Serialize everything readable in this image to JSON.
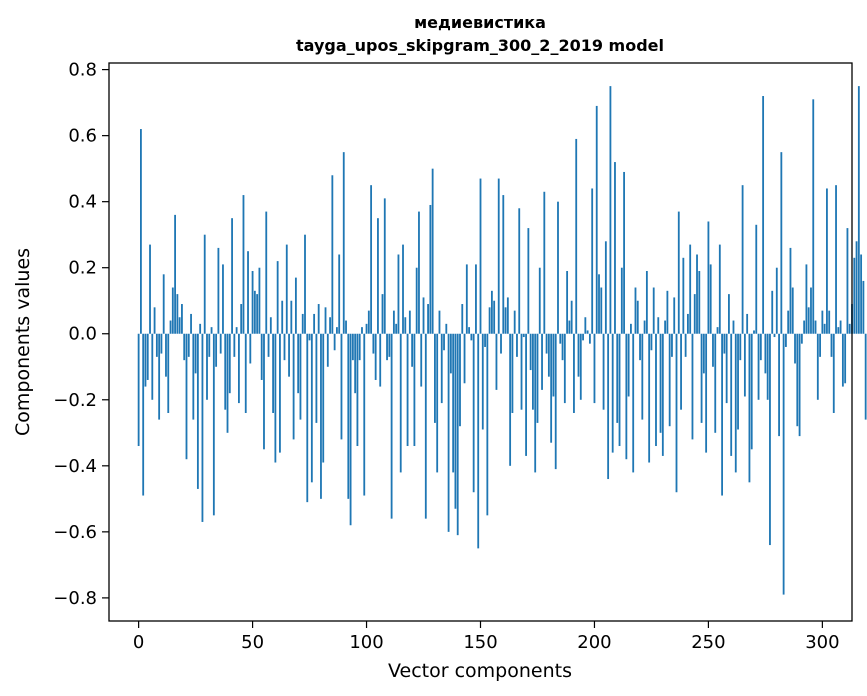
{
  "chart_data": {
    "type": "bar",
    "title": "медиевистика",
    "subtitle": "tayga_upos_skipgram_300_2_2019 model",
    "xlabel": "Vector components",
    "ylabel": "Components values",
    "xlim": [
      -13,
      313
    ],
    "ylim": [
      -0.87,
      0.82
    ],
    "xticks": [
      0,
      50,
      100,
      150,
      200,
      250,
      300
    ],
    "xtick_labels": [
      "0",
      "50",
      "100",
      "150",
      "200",
      "250",
      "300"
    ],
    "yticks": [
      -0.8,
      -0.6,
      -0.4,
      -0.2,
      0.0,
      0.2,
      0.4,
      0.6,
      0.8
    ],
    "ytick_labels": [
      "−0.8",
      "−0.6",
      "−0.4",
      "−0.2",
      "0.0",
      "0.2",
      "0.4",
      "0.6",
      "0.8"
    ],
    "bar_color": "#1f77b4",
    "grid": false,
    "legend": "none",
    "values": [
      -0.34,
      0.62,
      -0.49,
      -0.16,
      -0.14,
      0.27,
      -0.2,
      0.08,
      -0.07,
      -0.26,
      -0.06,
      0.18,
      -0.13,
      -0.24,
      0.04,
      0.14,
      0.36,
      0.12,
      0.05,
      0.09,
      -0.08,
      -0.38,
      -0.07,
      0.06,
      -0.26,
      -0.12,
      -0.47,
      0.03,
      -0.57,
      0.3,
      -0.2,
      -0.07,
      0.02,
      -0.55,
      -0.1,
      0.26,
      -0.06,
      0.21,
      -0.23,
      -0.3,
      -0.18,
      0.35,
      -0.07,
      0.02,
      -0.21,
      0.09,
      0.42,
      -0.24,
      0.25,
      -0.09,
      0.19,
      0.13,
      0.12,
      0.2,
      -0.14,
      -0.35,
      0.37,
      -0.07,
      0.05,
      -0.24,
      -0.39,
      0.22,
      -0.36,
      0.1,
      -0.08,
      0.27,
      -0.13,
      0.1,
      -0.32,
      0.17,
      -0.18,
      -0.26,
      0.06,
      0.3,
      -0.51,
      -0.02,
      -0.45,
      0.06,
      -0.27,
      0.09,
      -0.5,
      -0.39,
      0.08,
      -0.1,
      0.05,
      0.48,
      -0.05,
      0.02,
      0.24,
      -0.32,
      0.55,
      0.04,
      -0.5,
      -0.58,
      -0.08,
      -0.18,
      -0.34,
      -0.08,
      0.02,
      -0.49,
      0.03,
      0.07,
      0.45,
      -0.06,
      -0.14,
      0.35,
      -0.16,
      0.12,
      0.41,
      -0.08,
      -0.07,
      -0.56,
      0.07,
      0.03,
      0.24,
      -0.42,
      0.27,
      0.05,
      -0.34,
      0.07,
      -0.1,
      -0.34,
      0.2,
      0.37,
      -0.16,
      0.11,
      -0.56,
      0.09,
      0.39,
      0.5,
      -0.27,
      -0.42,
      0.07,
      -0.21,
      -0.05,
      0.03,
      -0.6,
      -0.12,
      -0.42,
      -0.53,
      -0.61,
      -0.28,
      0.09,
      -0.15,
      0.21,
      0.02,
      -0.02,
      -0.48,
      0.21,
      -0.65,
      0.47,
      -0.29,
      -0.04,
      -0.55,
      0.08,
      0.13,
      0.1,
      -0.17,
      0.47,
      -0.06,
      0.42,
      0.08,
      0.11,
      -0.4,
      -0.24,
      0.07,
      -0.07,
      0.38,
      -0.23,
      -0.01,
      -0.37,
      0.32,
      -0.11,
      -0.23,
      -0.42,
      -0.27,
      0.2,
      -0.17,
      0.43,
      -0.06,
      -0.13,
      -0.33,
      -0.19,
      -0.41,
      0.4,
      -0.03,
      -0.08,
      -0.21,
      0.19,
      0.04,
      0.1,
      -0.24,
      0.59,
      -0.13,
      -0.2,
      -0.02,
      0.05,
      0.01,
      -0.03,
      0.44,
      -0.21,
      0.69,
      0.18,
      0.14,
      -0.23,
      0.28,
      -0.44,
      0.75,
      -0.36,
      0.52,
      -0.27,
      -0.34,
      0.2,
      0.49,
      -0.38,
      -0.19,
      0.03,
      -0.42,
      0.14,
      0.1,
      -0.08,
      -0.26,
      0.04,
      0.19,
      -0.39,
      -0.05,
      0.14,
      -0.34,
      0.05,
      -0.3,
      -0.37,
      0.04,
      0.13,
      -0.28,
      -0.07,
      0.11,
      -0.48,
      0.37,
      -0.23,
      0.23,
      -0.07,
      0.06,
      0.27,
      -0.32,
      0.12,
      0.24,
      0.19,
      -0.27,
      -0.12,
      -0.36,
      0.34,
      0.21,
      -0.1,
      -0.3,
      0.02,
      0.27,
      -0.49,
      -0.06,
      -0.21,
      0.12,
      -0.37,
      0.04,
      -0.42,
      -0.29,
      -0.08,
      0.45,
      -0.19,
      0.06,
      -0.45,
      -0.35,
      0.01,
      0.33,
      -0.2,
      -0.08,
      0.72,
      -0.12,
      -0.2,
      -0.64,
      0.13,
      -0.01,
      0.2,
      -0.31,
      0.55,
      -0.79,
      -0.04,
      0.07,
      0.26,
      0.14,
      -0.09,
      -0.28,
      -0.31,
      -0.03,
      0.04,
      0.21,
      0.08,
      0.14,
      0.71,
      0.04,
      -0.2,
      -0.07,
      0.07,
      0.03,
      0.44,
      0.07,
      -0.07,
      -0.24,
      0.45,
      0.02,
      0.04,
      -0.16,
      -0.15,
      0.32,
      0.03,
      0.09,
      0.23,
      0.28,
      0.75,
      0.24,
      0.16,
      -0.26
    ]
  }
}
